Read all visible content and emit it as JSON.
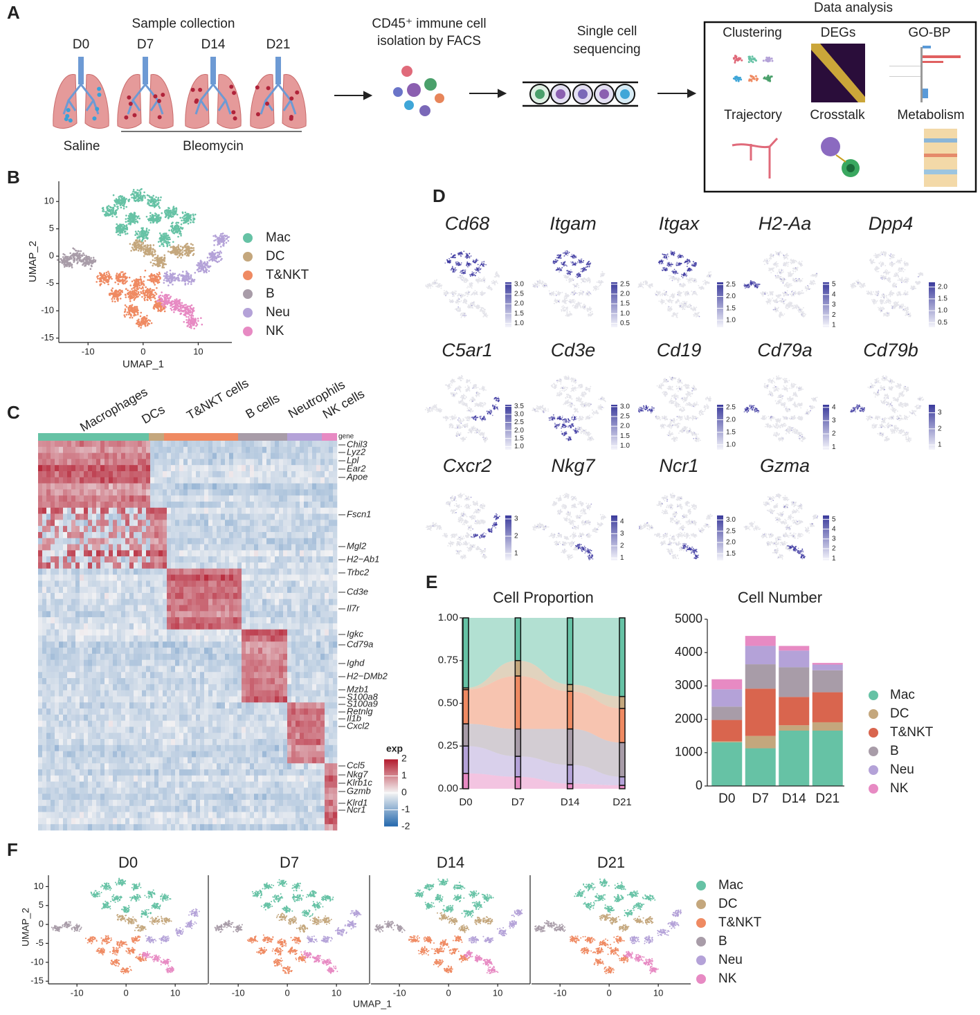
{
  "panel_labels": [
    "A",
    "B",
    "C",
    "D",
    "E",
    "F"
  ],
  "workflow": {
    "sample_collection": "Sample collection",
    "days": [
      "D0",
      "D7",
      "D14",
      "D21"
    ],
    "saline": "Saline",
    "bleomycin": "Bleomycin",
    "isolation": [
      "CD45⁺ immune cell",
      "isolation by FACS"
    ],
    "sequencing": [
      "Single cell",
      "sequencing"
    ],
    "analysis_title": "Data analysis",
    "analysis_items": [
      "Clustering",
      "DEGs",
      "GO-BP",
      "Trajectory",
      "Crosstalk",
      "Metabolism"
    ]
  },
  "chart_data": [
    {
      "type": "umap",
      "xlabel": "UMAP_1",
      "ylabel": "UMAP_2",
      "xlim": [
        -15.3,
        16.1
      ],
      "ylim": [
        -15.8,
        13.7
      ],
      "xticks": [
        -10,
        0,
        10
      ],
      "yticks": [
        10,
        5,
        0,
        -5,
        -10,
        -15
      ],
      "series": [
        {
          "name": "Mac",
          "color": "#66c2a5",
          "x": [
            -4,
            -1,
            2,
            5,
            -2,
            2,
            6,
            -4,
            0,
            4,
            8,
            -6
          ],
          "y": [
            10,
            11,
            10,
            8,
            7,
            7,
            5,
            5,
            4,
            3,
            7,
            8
          ]
        },
        {
          "name": "DC",
          "color": "#c4a77d",
          "x": [
            -1,
            1,
            3,
            6,
            8
          ],
          "y": [
            2,
            1,
            -1,
            1,
            1
          ]
        },
        {
          "name": "T&NKT",
          "color": "#ef8a62",
          "x": [
            -7,
            -4,
            -1,
            2,
            -5,
            -2,
            1,
            -2,
            0,
            3
          ],
          "y": [
            -4,
            -4,
            -5,
            -4,
            -7,
            -7,
            -7,
            -10,
            -12,
            -9
          ]
        },
        {
          "name": "B",
          "color": "#a89ca8",
          "x": [
            -14,
            -12,
            -10
          ],
          "y": [
            -1,
            0,
            -1
          ]
        },
        {
          "name": "Neu",
          "color": "#b4a2d8",
          "x": [
            5,
            8,
            11,
            13,
            14
          ],
          "y": [
            -4,
            -4,
            -2,
            0,
            3
          ]
        },
        {
          "name": "NK",
          "color": "#e78ac3",
          "x": [
            4,
            6,
            8,
            9
          ],
          "y": [
            -8,
            -9,
            -10,
            -12
          ]
        }
      ]
    },
    {
      "type": "heatmap",
      "groups": [
        "Macrophages",
        "DCs",
        "T&NKT cells",
        "B cells",
        "Neutrophils",
        "NK cells"
      ],
      "group_colors": [
        "#66c2a5",
        "#c4a77d",
        "#ef8a62",
        "#a89ca8",
        "#b4a2d8",
        "#e78ac3"
      ],
      "group_sizes": [
        160,
        22,
        107,
        71,
        50,
        22
      ],
      "gene_header": "gene",
      "genes": [
        "Chil3",
        "Lyz2",
        "Lpl",
        "Ear2",
        "Apoe",
        "Fscn1",
        "Mgl2",
        "H2−Ab1",
        "Trbc2",
        "Cd3e",
        "Il7r",
        "Igkc",
        "Cd79a",
        "Ighd",
        "H2−DMb2",
        "Mzb1",
        "S100a8",
        "S100a9",
        "Retnlg",
        "Il1b",
        "Cxcl2",
        "Ccl5",
        "Nkg7",
        "Klrb1c",
        "Gzmb",
        "Klrd1",
        "Ncr1"
      ],
      "legend_title": "exp",
      "clim": [
        -2,
        2
      ],
      "cticks": [
        2,
        1,
        0,
        -1,
        -2
      ]
    },
    {
      "type": "feature",
      "features": [
        {
          "gene": "Cd68",
          "clim": [
            0.8,
            3.1
          ],
          "cticks": [
            {
              "value": 3,
              "label": "3.0"
            },
            2.5,
            {
              "value": 2,
              "label": "2.0"
            },
            1.5,
            {
              "value": 1,
              "label": "1.0"
            }
          ]
        },
        {
          "gene": "Itgam",
          "clim": [
            0.3,
            2.6
          ],
          "cticks": [
            2.5,
            {
              "value": 2,
              "label": "2.0"
            },
            1.5,
            {
              "value": 1,
              "label": "1.0"
            },
            0.5
          ]
        },
        {
          "gene": "Itgax",
          "clim": [
            0.7,
            2.6
          ],
          "cticks": [
            2.5,
            {
              "value": 2,
              "label": "2.0"
            },
            1.5,
            {
              "value": 1,
              "label": "1.0"
            }
          ]
        },
        {
          "gene": "H2-Aa",
          "clim": [
            0.8,
            5.2
          ],
          "cticks": [
            5,
            4,
            3,
            2,
            1
          ]
        },
        {
          "gene": "Dpp4",
          "clim": [
            0.3,
            2.2
          ],
          "cticks": [
            {
              "value": 2,
              "label": "2.0"
            },
            1.5,
            {
              "value": 1,
              "label": "1.0"
            },
            0.5
          ]
        },
        {
          "gene": "C5ar1",
          "clim": [
            0.8,
            3.6
          ],
          "cticks": [
            3.5,
            {
              "value": 3,
              "label": "3.0"
            },
            2.5,
            {
              "value": 2,
              "label": "2.0"
            },
            1.5,
            {
              "value": 1,
              "label": "1.0"
            }
          ]
        },
        {
          "gene": "Cd3e",
          "clim": [
            0.8,
            3.1
          ],
          "cticks": [
            {
              "value": 3,
              "label": "3.0"
            },
            2.5,
            {
              "value": 2,
              "label": "2.0"
            },
            1.5,
            {
              "value": 1,
              "label": "1.0"
            }
          ]
        },
        {
          "gene": "Cd19",
          "clim": [
            0.8,
            2.6
          ],
          "cticks": [
            2.5,
            {
              "value": 2,
              "label": "2.0"
            },
            1.5,
            {
              "value": 1,
              "label": "1.0"
            }
          ]
        },
        {
          "gene": "Cd79a",
          "clim": [
            0.8,
            4.2
          ],
          "cticks": [
            4,
            3,
            2,
            1
          ]
        },
        {
          "gene": "Cd79b",
          "clim": [
            0.7,
            3.5
          ],
          "cticks": [
            3,
            2,
            1
          ]
        },
        {
          "gene": "Cxcr2",
          "clim": [
            0.6,
            3.2
          ],
          "cticks": [
            3,
            2,
            1
          ]
        },
        {
          "gene": "Nkg7",
          "clim": [
            0.8,
            4.5
          ],
          "cticks": [
            4,
            3,
            2,
            1
          ]
        },
        {
          "gene": "Ncr1",
          "clim": [
            1.2,
            3.2
          ],
          "cticks": [
            {
              "value": 3,
              "label": "3.0"
            },
            2.5,
            {
              "value": 2,
              "label": "2.0"
            },
            1.5
          ]
        },
        {
          "gene": "Gzma",
          "clim": [
            0.8,
            5.4
          ],
          "cticks": [
            5,
            4,
            3,
            2,
            1
          ]
        }
      ]
    },
    {
      "type": "area",
      "title": "Cell Proportion",
      "categories": [
        "D0",
        "D7",
        "D14",
        "D21"
      ],
      "ylim": [
        0,
        1
      ],
      "yticks": [
        {
          "value": 0,
          "label": "0.00"
        },
        {
          "value": 0.25,
          "label": "0.25"
        },
        {
          "value": 0.5,
          "label": "0.50"
        },
        {
          "value": 0.75,
          "label": "0.75"
        },
        {
          "value": 1,
          "label": "1.00"
        }
      ],
      "series": [
        {
          "name": "Mac",
          "color": "#66c2a5",
          "values": [
            0.41,
            0.25,
            0.39,
            0.46
          ]
        },
        {
          "name": "DC",
          "color": "#c4a77d",
          "values": [
            0.01,
            0.09,
            0.04,
            0.07
          ]
        },
        {
          "name": "T&NKT",
          "color": "#ef8a62",
          "values": [
            0.2,
            0.31,
            0.22,
            0.2
          ]
        },
        {
          "name": "B",
          "color": "#a89ca8",
          "values": [
            0.13,
            0.16,
            0.21,
            0.2
          ]
        },
        {
          "name": "Neu",
          "color": "#b4a2d8",
          "values": [
            0.16,
            0.12,
            0.11,
            0.05
          ]
        },
        {
          "name": "NK",
          "color": "#e78ac3",
          "values": [
            0.09,
            0.07,
            0.03,
            0.02
          ]
        }
      ]
    },
    {
      "type": "bar",
      "title": "Cell Number",
      "categories": [
        "D0",
        "D7",
        "D14",
        "D21"
      ],
      "ylim": [
        0,
        5000
      ],
      "yticks": [
        0,
        1000,
        2000,
        3000,
        4000,
        5000
      ],
      "series": [
        {
          "name": "Mac",
          "color": "#66c2a5",
          "values": [
            1310,
            1130,
            1660,
            1660
          ]
        },
        {
          "name": "DC",
          "color": "#c4a77d",
          "values": [
            30,
            370,
            160,
            250
          ]
        },
        {
          "name": "T&NKT",
          "color": "#d9654e",
          "values": [
            640,
            1420,
            850,
            900
          ]
        },
        {
          "name": "B",
          "color": "#a89ca8",
          "values": [
            400,
            730,
            890,
            660
          ]
        },
        {
          "name": "Neu",
          "color": "#b4a2d8",
          "values": [
            520,
            550,
            500,
            170
          ]
        },
        {
          "name": "NK",
          "color": "#e78ac3",
          "values": [
            300,
            300,
            140,
            50
          ]
        }
      ]
    },
    {
      "type": "umap_facets",
      "facets": [
        "D0",
        "D7",
        "D14",
        "D21"
      ],
      "xlabel": "UMAP_1",
      "ylabel": "UMAP_2",
      "xlim": [
        -15.8,
        16.6
      ],
      "ylim": [
        -15.7,
        13
      ],
      "xticks": [
        -10,
        0,
        10
      ],
      "yticks": [
        10,
        5,
        0,
        -5,
        -10,
        -15
      ],
      "series": [
        {
          "name": "Mac",
          "color": "#66c2a5",
          "x": [
            -4,
            -1,
            2,
            5,
            -2,
            2,
            6,
            -4,
            0,
            4,
            8,
            -6
          ],
          "y": [
            10,
            11,
            10,
            8,
            7,
            7,
            5,
            5,
            4,
            3,
            7,
            8
          ]
        },
        {
          "name": "DC",
          "color": "#c4a77d",
          "x": [
            -1,
            1,
            3,
            6,
            8
          ],
          "y": [
            2,
            1,
            -1,
            1,
            1
          ]
        },
        {
          "name": "T&NKT",
          "color": "#ef8a62",
          "x": [
            -7,
            -4,
            -1,
            2,
            -5,
            -2,
            1,
            -2,
            0,
            3
          ],
          "y": [
            -4,
            -4,
            -5,
            -4,
            -7,
            -7,
            -7,
            -10,
            -12,
            -9
          ]
        },
        {
          "name": "B",
          "color": "#a89ca8",
          "x": [
            -14,
            -12,
            -10
          ],
          "y": [
            -1,
            0,
            -1
          ]
        },
        {
          "name": "Neu",
          "color": "#b4a2d8",
          "x": [
            5,
            8,
            11,
            13,
            14
          ],
          "y": [
            -4,
            -4,
            -2,
            0,
            3
          ]
        },
        {
          "name": "NK",
          "color": "#e78ac3",
          "x": [
            4,
            6,
            8,
            9
          ],
          "y": [
            -8,
            -9,
            -10,
            -12
          ]
        }
      ]
    }
  ]
}
